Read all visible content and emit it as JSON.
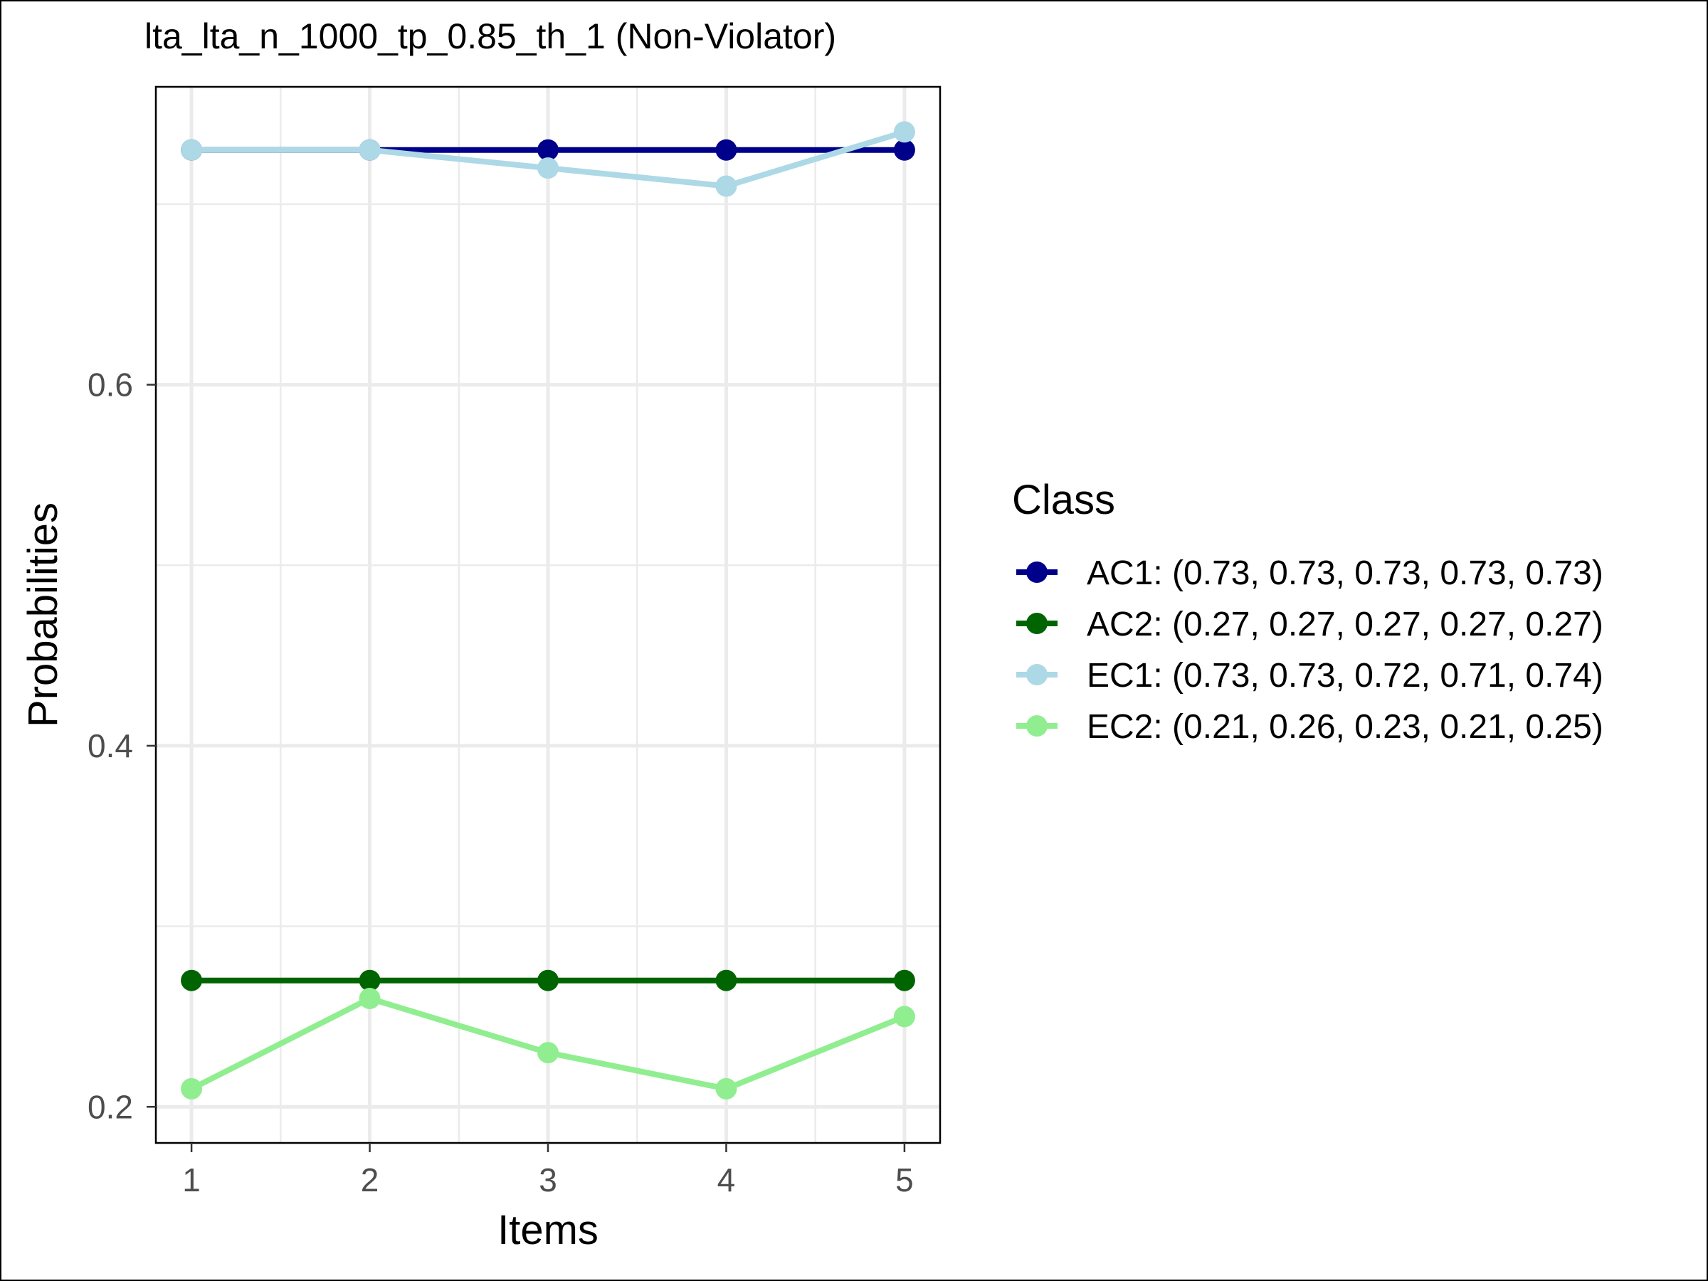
{
  "chart_data": {
    "type": "line",
    "title": "lta_lta_n_1000_tp_0.85_th_1 (Non-Violator)",
    "xlabel": "Items",
    "ylabel": "Probabilities",
    "x": [
      1,
      2,
      3,
      4,
      5
    ],
    "x_ticks": [
      "1",
      "2",
      "3",
      "4",
      "5"
    ],
    "xlim": [
      0.8,
      5.2
    ],
    "ylim": [
      0.18,
      0.765
    ],
    "y_ticks": [
      0.2,
      0.4,
      0.6
    ],
    "y_tick_labels": [
      "0.2",
      "0.4",
      "0.6"
    ],
    "grid": true,
    "legend": {
      "title": "Class",
      "placement": "right"
    },
    "series": [
      {
        "name": "AC1",
        "legend_label": "AC1: (0.73, 0.73, 0.73, 0.73, 0.73)",
        "color": "#00008B",
        "values": [
          0.73,
          0.73,
          0.73,
          0.73,
          0.73
        ]
      },
      {
        "name": "AC2",
        "legend_label": "AC2: (0.27, 0.27, 0.27, 0.27, 0.27)",
        "color": "#006400",
        "values": [
          0.27,
          0.27,
          0.27,
          0.27,
          0.27
        ]
      },
      {
        "name": "EC1",
        "legend_label": "EC1: (0.73, 0.73, 0.72, 0.71, 0.74)",
        "color": "#ADD8E6",
        "values": [
          0.73,
          0.73,
          0.72,
          0.71,
          0.74
        ]
      },
      {
        "name": "EC2",
        "legend_label": "EC2: (0.21, 0.26, 0.23, 0.21, 0.25)",
        "color": "#90EE90",
        "values": [
          0.21,
          0.26,
          0.23,
          0.21,
          0.25
        ]
      }
    ]
  }
}
